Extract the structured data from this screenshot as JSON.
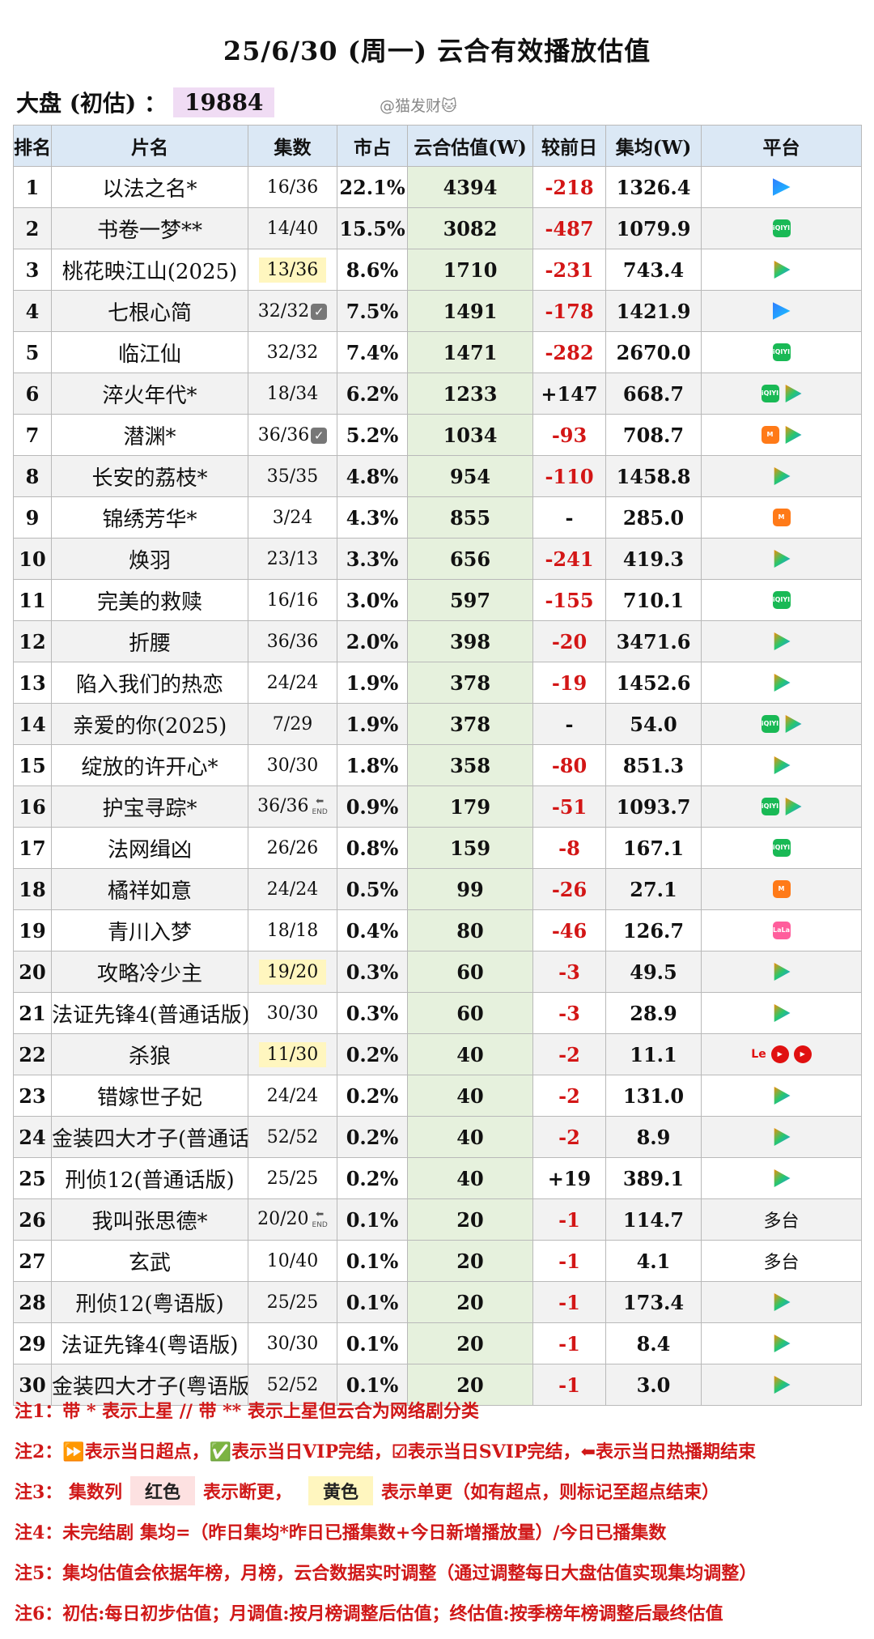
{
  "title": "25/6/30 (周一) 云合有效播放估值",
  "dapan": {
    "label": "大盘 (初估) ：",
    "value": "19884"
  },
  "credit": "@猫发财🐱",
  "headers": [
    "排名",
    "片名",
    "集数",
    "市占",
    "云合估值(W)",
    "较前日",
    "集均(W)",
    "平台"
  ],
  "rows": [
    {
      "rank": "1",
      "name": "以法之名*",
      "eps": "16/36",
      "share": "22.1%",
      "yunhe": "4394",
      "change": "-218",
      "avg": "1326.4",
      "platform": [
        "youku"
      ]
    },
    {
      "rank": "2",
      "name": "书卷一梦**",
      "eps": "14/40",
      "share": "15.5%",
      "yunhe": "3082",
      "change": "-487",
      "avg": "1079.9",
      "platform": [
        "iqiyi"
      ]
    },
    {
      "rank": "3",
      "name": "桃花映江山(2025)",
      "eps": "13/36",
      "eps_hl": true,
      "share": "8.6%",
      "yunhe": "1710",
      "change": "-231",
      "avg": "743.4",
      "platform": [
        "tencent"
      ]
    },
    {
      "rank": "4",
      "name": "七根心简",
      "eps": "32/32",
      "eps_mark": "check",
      "share": "7.5%",
      "yunhe": "1491",
      "change": "-178",
      "avg": "1421.9",
      "platform": [
        "youku"
      ]
    },
    {
      "rank": "5",
      "name": "临江仙",
      "eps": "32/32",
      "share": "7.4%",
      "yunhe": "1471",
      "change": "-282",
      "avg": "2670.0",
      "platform": [
        "iqiyi"
      ]
    },
    {
      "rank": "6",
      "name": "淬火年代*",
      "eps": "18/34",
      "share": "6.2%",
      "yunhe": "1233",
      "change": "+147",
      "avg": "668.7",
      "platform": [
        "iqiyi",
        "tencent"
      ]
    },
    {
      "rank": "7",
      "name": "潜渊*",
      "eps": "36/36",
      "eps_mark": "check",
      "share": "5.2%",
      "yunhe": "1034",
      "change": "-93",
      "avg": "708.7",
      "platform": [
        "mango",
        "tencent"
      ]
    },
    {
      "rank": "8",
      "name": "长安的荔枝*",
      "eps": "35/35",
      "share": "4.8%",
      "yunhe": "954",
      "change": "-110",
      "avg": "1458.8",
      "platform": [
        "tencent"
      ]
    },
    {
      "rank": "9",
      "name": "锦绣芳华*",
      "eps": "3/24",
      "share": "4.3%",
      "yunhe": "855",
      "change": "-",
      "avg": "285.0",
      "platform": [
        "mango"
      ]
    },
    {
      "rank": "10",
      "name": "焕羽",
      "eps": "23/13",
      "share": "3.3%",
      "yunhe": "656",
      "change": "-241",
      "avg": "419.3",
      "platform": [
        "tencent"
      ]
    },
    {
      "rank": "11",
      "name": "完美的救赎",
      "eps": "16/16",
      "share": "3.0%",
      "yunhe": "597",
      "change": "-155",
      "avg": "710.1",
      "platform": [
        "iqiyi"
      ]
    },
    {
      "rank": "12",
      "name": "折腰",
      "eps": "36/36",
      "share": "2.0%",
      "yunhe": "398",
      "change": "-20",
      "avg": "3471.6",
      "platform": [
        "tencent"
      ]
    },
    {
      "rank": "13",
      "name": "陷入我们的热恋",
      "eps": "24/24",
      "share": "1.9%",
      "yunhe": "378",
      "change": "-19",
      "avg": "1452.6",
      "platform": [
        "tencent"
      ]
    },
    {
      "rank": "14",
      "name": "亲爱的你(2025)",
      "eps": "7/29",
      "share": "1.9%",
      "yunhe": "378",
      "change": "-",
      "avg": "54.0",
      "platform": [
        "iqiyi",
        "tencent"
      ]
    },
    {
      "rank": "15",
      "name": "绽放的许开心*",
      "eps": "30/30",
      "share": "1.8%",
      "yunhe": "358",
      "change": "-80",
      "avg": "851.3",
      "platform": [
        "tencent"
      ]
    },
    {
      "rank": "16",
      "name": "护宝寻踪*",
      "eps": "36/36",
      "eps_mark": "end",
      "share": "0.9%",
      "yunhe": "179",
      "change": "-51",
      "avg": "1093.7",
      "platform": [
        "iqiyi",
        "tencent"
      ]
    },
    {
      "rank": "17",
      "name": "法网缉凶",
      "eps": "26/26",
      "share": "0.8%",
      "yunhe": "159",
      "change": "-8",
      "avg": "167.1",
      "platform": [
        "iqiyi"
      ]
    },
    {
      "rank": "18",
      "name": "橘祥如意",
      "eps": "24/24",
      "share": "0.5%",
      "yunhe": "99",
      "change": "-26",
      "avg": "27.1",
      "platform": [
        "mango"
      ]
    },
    {
      "rank": "19",
      "name": "青川入梦",
      "eps": "18/18",
      "share": "0.4%",
      "yunhe": "80",
      "change": "-46",
      "avg": "126.7",
      "platform": [
        "lala"
      ]
    },
    {
      "rank": "20",
      "name": "攻略冷少主",
      "eps": "19/20",
      "eps_hl": true,
      "share": "0.3%",
      "yunhe": "60",
      "change": "-3",
      "avg": "49.5",
      "platform": [
        "tencent"
      ]
    },
    {
      "rank": "21",
      "name": "法证先锋4(普通话版)",
      "eps": "30/30",
      "share": "0.3%",
      "yunhe": "60",
      "change": "-3",
      "avg": "28.9",
      "platform": [
        "tencent"
      ]
    },
    {
      "rank": "22",
      "name": "杀狼",
      "eps": "11/30",
      "eps_hl": true,
      "share": "0.2%",
      "yunhe": "40",
      "change": "-2",
      "avg": "11.1",
      "platform": [
        "le",
        "red",
        "red"
      ]
    },
    {
      "rank": "23",
      "name": "错嫁世子妃",
      "eps": "24/24",
      "share": "0.2%",
      "yunhe": "40",
      "change": "-2",
      "avg": "131.0",
      "platform": [
        "tencent"
      ]
    },
    {
      "rank": "24",
      "name": "金装四大才子(普通话版)",
      "eps": "52/52",
      "share": "0.2%",
      "yunhe": "40",
      "change": "-2",
      "avg": "8.9",
      "platform": [
        "tencent"
      ]
    },
    {
      "rank": "25",
      "name": "刑侦12(普通话版)",
      "eps": "25/25",
      "share": "0.2%",
      "yunhe": "40",
      "change": "+19",
      "avg": "389.1",
      "platform": [
        "tencent"
      ]
    },
    {
      "rank": "26",
      "name": "我叫张思德*",
      "eps": "20/20",
      "eps_mark": "end",
      "share": "0.1%",
      "yunhe": "20",
      "change": "-1",
      "avg": "114.7",
      "platform_text": "多台"
    },
    {
      "rank": "27",
      "name": "玄武",
      "eps": "10/40",
      "share": "0.1%",
      "yunhe": "20",
      "change": "-1",
      "avg": "4.1",
      "platform_text": "多台"
    },
    {
      "rank": "28",
      "name": "刑侦12(粤语版)",
      "eps": "25/25",
      "share": "0.1%",
      "yunhe": "20",
      "change": "-1",
      "avg": "173.4",
      "platform": [
        "tencent"
      ]
    },
    {
      "rank": "29",
      "name": "法证先锋4(粤语版)",
      "eps": "30/30",
      "share": "0.1%",
      "yunhe": "20",
      "change": "-1",
      "avg": "8.4",
      "platform": [
        "tencent"
      ]
    },
    {
      "rank": "30",
      "name": "金装四大才子(粤语版)",
      "eps": "52/52",
      "share": "0.1%",
      "yunhe": "20",
      "change": "-1",
      "avg": "3.0",
      "platform": [
        "tencent"
      ]
    }
  ],
  "end_label": "END",
  "notes": {
    "n1": "注1：带 * 表示上星 // 带 ** 表示上星但云合为网络剧分类",
    "n2": "注2：⏩表示当日超点，✅表示当日VIP完结，☑表示当日SVIP完结，⬅表示当日热播期结束",
    "n3_pre": "注3：  集数列",
    "n3_red": "红色",
    "n3_mid": "表示断更，",
    "n3_yel": "黄色",
    "n3_post": "表示单更（如有超点，则标记至超点结束）",
    "n4": "注4：未完结剧 集均=（昨日集均*昨日已播集数+今日新增播放量）/今日已播集数",
    "n5": "注5：集均估值会依据年榜，月榜，云合数据实时调整（通过调整每日大盘估值实现集均调整）",
    "n6": "注6：初估:每日初步估值；月调值:按月榜调整后估值；终估值:按季榜年榜调整后最终估值"
  },
  "colors": {
    "header_bg": "#dbe8f5",
    "yunhe_bg": "#e6f1dd",
    "neg": "#d31616",
    "highlight": "#fff6bf",
    "dapan_bg": "#f0dcf4"
  }
}
